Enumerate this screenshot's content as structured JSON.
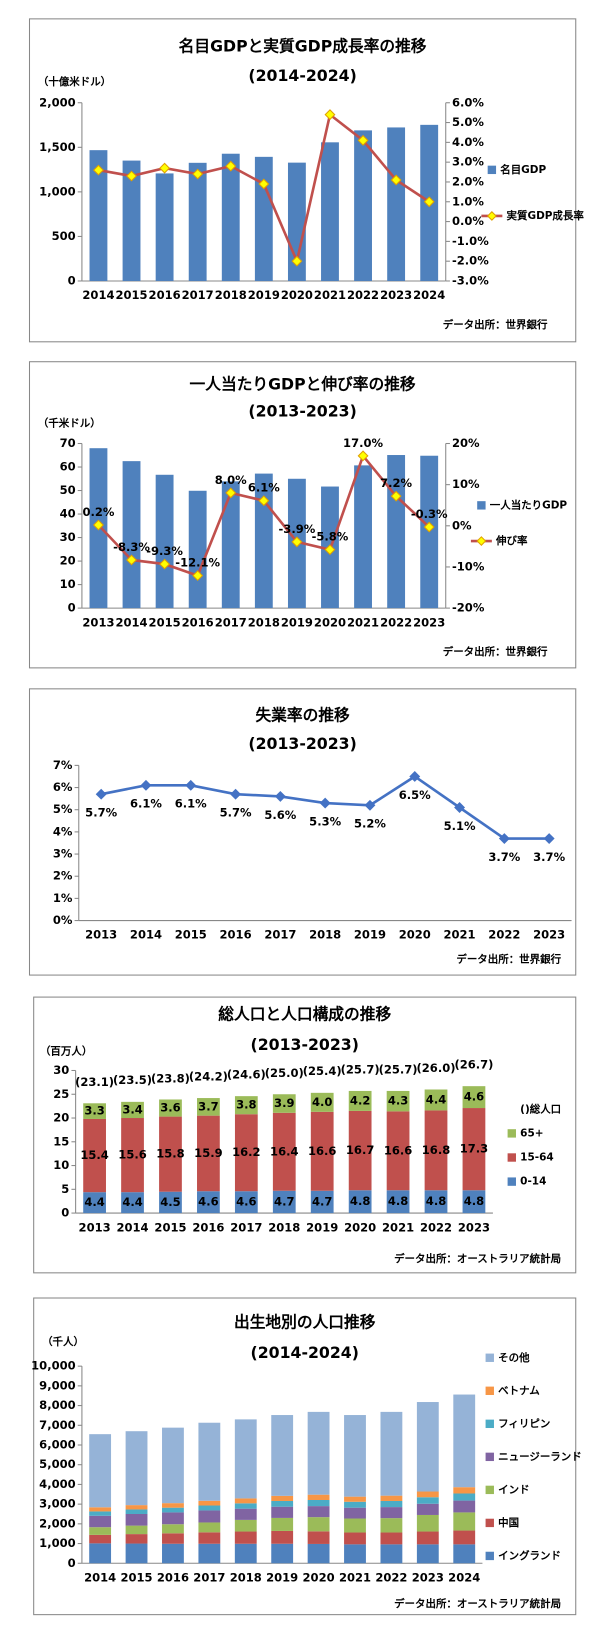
{
  "chart_data": [
    {
      "type": "combo",
      "title": "名目GDPと実質GDP成長率の推移",
      "subtitle": "(2014-2024)",
      "y_unit": "（十億米ドル）",
      "source": "データ出所：世界銀行",
      "categories": [
        "2014",
        "2015",
        "2016",
        "2017",
        "2018",
        "2019",
        "2020",
        "2021",
        "2022",
        "2023",
        "2024"
      ],
      "series": [
        {
          "name": "名目GDP",
          "color": "#4f81bd",
          "values": [
            1468,
            1351,
            1207,
            1326,
            1428,
            1393,
            1328,
            1556,
            1690,
            1723,
            1752
          ]
        },
        {
          "name": "実質GDP成長率",
          "color": "#c0504d",
          "axis": "y2",
          "values": [
            2.6,
            2.3,
            2.7,
            2.4,
            2.8,
            1.9,
            -2.0,
            5.4,
            4.1,
            2.1,
            1.0
          ]
        }
      ],
      "ylim": [
        0,
        2000
      ],
      "yticks": [
        0,
        500,
        {
          "value": 1000,
          "label": "1,000"
        },
        {
          "value": 1500,
          "label": "1,500"
        },
        {
          "value": 2000,
          "label": "2,000"
        }
      ],
      "y2lim": [
        -3,
        6
      ],
      "y2ticks": [
        {
          "value": -3,
          "label": "-3.0%"
        },
        {
          "value": -2,
          "label": "-2.0%"
        },
        {
          "value": -1,
          "label": "-1.0%"
        },
        {
          "value": 0,
          "label": "0.0%"
        },
        {
          "value": 1,
          "label": "1.0%"
        },
        {
          "value": 2,
          "label": "2.0%"
        },
        {
          "value": 3,
          "label": "3.0%"
        },
        {
          "value": 4,
          "label": "4.0%"
        },
        {
          "value": 5,
          "label": "5.0%"
        },
        {
          "value": 6,
          "label": "6.0%"
        }
      ],
      "grid": false
    },
    {
      "type": "combo",
      "title": "一人当たりGDPと伸び率の推移",
      "subtitle": "(2013-2023)",
      "y_unit": "（千米ドル）",
      "source": "データ出所：世界銀行",
      "categories": [
        "2013",
        "2014",
        "2015",
        "2016",
        "2017",
        "2018",
        "2019",
        "2020",
        "2021",
        "2022",
        "2023"
      ],
      "series": [
        {
          "name": "一人当たりGDP",
          "color": "#4f81bd",
          "values": [
            68.0,
            62.5,
            56.7,
            49.9,
            53.9,
            57.2,
            55.0,
            51.7,
            60.7,
            65.1,
            64.8
          ]
        },
        {
          "name": "伸び率",
          "color": "#c0504d",
          "axis": "y2",
          "values": [
            0.2,
            -8.3,
            -9.3,
            -12.1,
            8.0,
            6.1,
            -3.9,
            -5.8,
            17.0,
            7.2,
            -0.3
          ],
          "value_labels": [
            "0.2%",
            "-8.3%",
            "-9.3%",
            "-12.1%",
            "8.0%",
            "6.1%",
            "-3.9%",
            "-5.8%",
            "17.0%",
            "7.2%",
            "-0.3%"
          ]
        }
      ],
      "ylim": [
        0,
        70
      ],
      "yticks": [
        0,
        10,
        20,
        30,
        40,
        50,
        60,
        70
      ],
      "y2lim": [
        -20,
        20
      ],
      "y2ticks": [
        {
          "value": -20,
          "label": "-20%"
        },
        {
          "value": -10,
          "label": "-10%"
        },
        {
          "value": 0,
          "label": "0%"
        },
        {
          "value": 10,
          "label": "10%"
        },
        {
          "value": 20,
          "label": "20%"
        }
      ],
      "grid": false
    },
    {
      "type": "line",
      "title": "失業率の推移",
      "subtitle": "(2013-2023)",
      "source": "データ出所：世界銀行",
      "categories": [
        "2013",
        "2014",
        "2015",
        "2016",
        "2017",
        "2018",
        "2019",
        "2020",
        "2021",
        "2022",
        "2023"
      ],
      "series": [
        {
          "color": "#4472c4",
          "values": [
            5.7,
            6.1,
            6.1,
            5.7,
            5.6,
            5.3,
            5.2,
            6.5,
            5.1,
            3.7,
            3.7
          ],
          "value_labels": [
            "5.7%",
            "6.1%",
            "6.1%",
            "5.7%",
            "5.6%",
            "5.3%",
            "5.2%",
            "6.5%",
            "5.1%",
            "3.7%",
            "3.7%"
          ]
        }
      ],
      "ylim": [
        0,
        7
      ],
      "yticks": [
        {
          "value": 0,
          "label": "0%"
        },
        {
          "value": 1,
          "label": "1%"
        },
        {
          "value": 2,
          "label": "2%"
        },
        {
          "value": 3,
          "label": "3%"
        },
        {
          "value": 4,
          "label": "4%"
        },
        {
          "value": 5,
          "label": "5%"
        },
        {
          "value": 6,
          "label": "6%"
        },
        {
          "value": 7,
          "label": "7%"
        }
      ],
      "grid": false
    },
    {
      "type": "stacked",
      "title": "総人口と人口構成の推移",
      "subtitle": "(2013-2023)",
      "y_unit": "（百万人）",
      "source": "データ出所：オーストラリア統計局",
      "categories": [
        "2013",
        "2014",
        "2015",
        "2016",
        "2017",
        "2018",
        "2019",
        "2020",
        "2021",
        "2022",
        "2023"
      ],
      "series": [
        {
          "name": "0-14",
          "color": "#4f81bd",
          "values": [
            4.4,
            4.4,
            4.5,
            4.6,
            4.6,
            4.7,
            4.7,
            4.8,
            4.8,
            4.8,
            4.8
          ],
          "value_labels": [
            "4.4",
            "4.4",
            "4.5",
            "4.6",
            "4.6",
            "4.7",
            "4.7",
            "4.8",
            "4.8",
            "4.8",
            "4.8"
          ]
        },
        {
          "name": "15-64",
          "color": "#c0504d",
          "values": [
            15.4,
            15.6,
            15.8,
            15.9,
            16.2,
            16.4,
            16.6,
            16.7,
            16.6,
            16.8,
            17.3
          ],
          "value_labels": [
            "15.4",
            "15.6",
            "15.8",
            "15.9",
            "16.2",
            "16.4",
            "16.6",
            "16.7",
            "16.6",
            "16.8",
            "17.3"
          ]
        },
        {
          "name": "65+",
          "color": "#9bbb59",
          "values": [
            3.3,
            3.4,
            3.6,
            3.7,
            3.8,
            3.9,
            4.0,
            4.2,
            4.3,
            4.4,
            4.6
          ],
          "value_labels": [
            "3.3",
            "3.4",
            "3.6",
            "3.7",
            "3.8",
            "3.9",
            "4.0",
            "4.2",
            "4.3",
            "4.4",
            "4.6"
          ]
        }
      ],
      "totals": {
        "name": "()総人口",
        "values": [
          23.1,
          23.5,
          23.8,
          24.2,
          24.6,
          25.0,
          25.4,
          25.7,
          25.7,
          26.0,
          26.7
        ],
        "value_labels": [
          "(23.1)",
          "(23.5)",
          "(23.8)",
          "(24.2)",
          "(24.6)",
          "(25.0)",
          "(25.4)",
          "(25.7)",
          "(25.7)",
          "(26.0)",
          "(26.7)"
        ]
      },
      "ylim": [
        0,
        30
      ],
      "yticks": [
        0,
        5,
        10,
        15,
        20,
        25,
        30
      ],
      "grid": false
    },
    {
      "type": "stacked",
      "title": "出生地別の人口推移",
      "subtitle": "(2014-2024)",
      "y_unit": "（千人）",
      "source": "データ出所：オーストラリア統計局",
      "categories": [
        "2014",
        "2015",
        "2016",
        "2017",
        "2018",
        "2019",
        "2020",
        "2021",
        "2022",
        "2023",
        "2024"
      ],
      "series": [
        {
          "name": "イングランド",
          "color": "#4f81bd",
          "values": [
            1010,
            1000,
            990,
            990,
            990,
            990,
            980,
            960,
            960,
            960,
            960
          ]
        },
        {
          "name": "中国",
          "color": "#c0504d",
          "values": [
            430,
            480,
            530,
            580,
            620,
            650,
            640,
            600,
            600,
            650,
            700
          ]
        },
        {
          "name": "インド",
          "color": "#9bbb59",
          "values": [
            390,
            430,
            460,
            500,
            590,
            660,
            720,
            710,
            730,
            840,
            920
          ]
        },
        {
          "name": "ニュージーランド",
          "color": "#8064a2",
          "values": [
            580,
            590,
            600,
            610,
            570,
            570,
            560,
            550,
            560,
            570,
            600
          ]
        },
        {
          "name": "フィリピン",
          "color": "#4bacc6",
          "values": [
            220,
            230,
            240,
            250,
            270,
            290,
            310,
            300,
            310,
            330,
            360
          ]
        },
        {
          "name": "ベトナム",
          "color": "#f79646",
          "values": [
            210,
            220,
            230,
            240,
            250,
            260,
            270,
            260,
            270,
            290,
            320
          ]
        },
        {
          "name": "その他",
          "color": "#95b3d7",
          "values": [
            3710,
            3750,
            3830,
            3960,
            4010,
            4100,
            4200,
            4140,
            4250,
            4540,
            4700
          ]
        }
      ],
      "ylim": [
        0,
        10000
      ],
      "yticks": [
        0,
        {
          "value": 1000,
          "label": "1,000"
        },
        {
          "value": 2000,
          "label": "2,000"
        },
        {
          "value": 3000,
          "label": "3,000"
        },
        {
          "value": 4000,
          "label": "4,000"
        },
        {
          "value": 5000,
          "label": "5,000"
        },
        {
          "value": 6000,
          "label": "6,000"
        },
        {
          "value": 7000,
          "label": "7,000"
        },
        {
          "value": 8000,
          "label": "8,000"
        },
        {
          "value": 9000,
          "label": "9,000"
        },
        {
          "value": 10000,
          "label": "10,000"
        }
      ],
      "grid": false
    }
  ]
}
